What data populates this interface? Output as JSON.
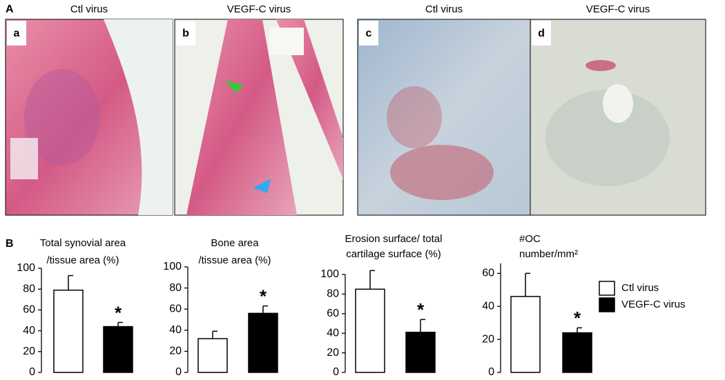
{
  "panel_a": {
    "label": "A",
    "images": [
      {
        "letter": "a",
        "caption": "Ctl  virus"
      },
      {
        "letter": "b",
        "caption": "VEGF-C virus"
      },
      {
        "letter": "c",
        "caption": "Ctl  virus"
      },
      {
        "letter": "d",
        "caption": "VEGF-C virus"
      }
    ]
  },
  "panel_b": {
    "label": "B"
  },
  "legend": {
    "series": [
      {
        "name": "Ctl virus",
        "color": "#ffffff"
      },
      {
        "name": "VEGF-C virus",
        "color": "#000000"
      }
    ]
  },
  "chart_data": [
    {
      "type": "bar",
      "title": [
        "Total synovial area",
        "/tissue area (%)"
      ],
      "values": [
        79,
        44
      ],
      "errors": [
        14,
        4
      ],
      "annotation": "*",
      "ylim": [
        0,
        100
      ],
      "yticks": [
        0,
        20,
        40,
        60,
        80,
        100
      ]
    },
    {
      "type": "bar",
      "title": [
        "Bone area",
        "/tissue area (%)"
      ],
      "values": [
        32,
        56
      ],
      "errors": [
        7,
        7
      ],
      "annotation": "*",
      "ylim": [
        0,
        100
      ],
      "yticks": [
        0,
        20,
        40,
        60,
        80,
        100
      ]
    },
    {
      "type": "bar",
      "title": [
        "Erosion surface/ total",
        "cartilage surface (%)"
      ],
      "values": [
        85,
        41
      ],
      "errors": [
        19,
        13
      ],
      "annotation": "*",
      "ylim": [
        0,
        100
      ],
      "yticks": [
        0,
        20,
        40,
        60,
        80,
        100
      ]
    },
    {
      "type": "bar",
      "title": [
        "#OC",
        "number/mm²"
      ],
      "values": [
        46,
        24
      ],
      "errors": [
        14,
        3
      ],
      "annotation": "*",
      "ylim": [
        0,
        66
      ],
      "yticks": [
        0,
        20,
        40,
        60
      ]
    }
  ]
}
